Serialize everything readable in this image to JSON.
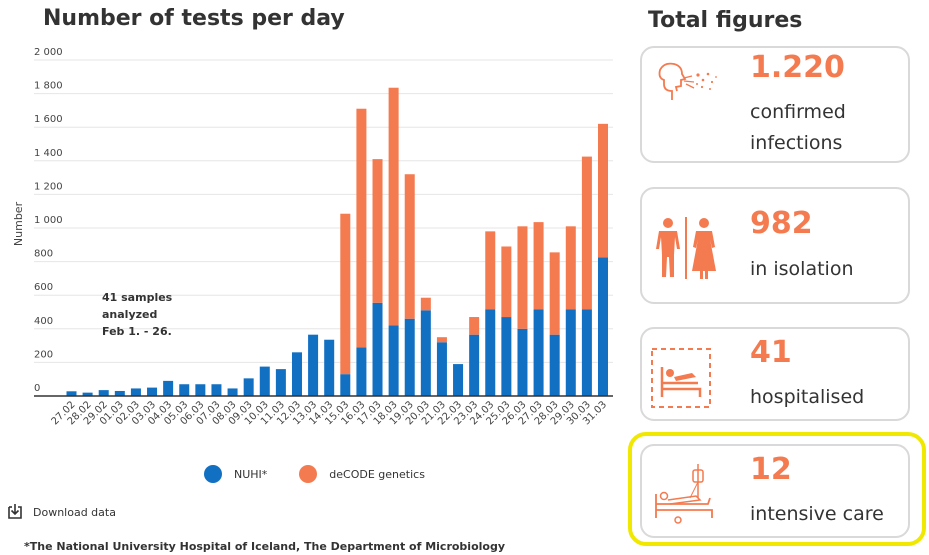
{
  "chart_data": {
    "type": "bar",
    "title": "Number of tests per day",
    "ylabel": "Number",
    "xlabel": "",
    "ylim": [
      0,
      2000
    ],
    "yticks": [
      "0",
      "200",
      "400",
      "600",
      "800",
      "1 000",
      "1 200",
      "1 400",
      "1 600",
      "1 800",
      "2 000"
    ],
    "categories": [
      "27.02",
      "28.02",
      "29.02",
      "01.03",
      "02.03",
      "03.03",
      "04.03",
      "05.03",
      "06.03",
      "07.03",
      "08.03",
      "09.03",
      "10.03",
      "11.03",
      "12.03",
      "13.03",
      "14.03",
      "15.03",
      "16.03",
      "17.03",
      "18.03",
      "19.03",
      "20.03",
      "21.03",
      "22.03",
      "23.03",
      "24.03",
      "25.03",
      "26.03",
      "27.03",
      "28.03",
      "29.03",
      "30.03",
      "31.03"
    ],
    "series": [
      {
        "name": "NUHI*",
        "color": "#1170c2",
        "values": [
          28,
          20,
          35,
          30,
          45,
          50,
          90,
          70,
          70,
          70,
          45,
          105,
          175,
          160,
          260,
          365,
          335,
          130,
          290,
          555,
          420,
          460,
          510,
          320,
          190,
          365,
          515,
          470,
          400,
          515,
          365,
          515,
          515,
          825
        ]
      },
      {
        "name": "deCODE genetics",
        "color": "#f47a4f",
        "values": [
          0,
          0,
          0,
          0,
          0,
          0,
          0,
          0,
          0,
          0,
          0,
          0,
          0,
          0,
          0,
          0,
          0,
          955,
          1420,
          855,
          1415,
          860,
          75,
          30,
          0,
          105,
          465,
          420,
          610,
          520,
          490,
          495,
          910,
          795
        ]
      }
    ],
    "annotation": [
      "41 samples",
      "analyzed",
      "Feb 1. - 26."
    ]
  },
  "legend": {
    "items": [
      {
        "label": "NUHI*",
        "color": "#1170c2"
      },
      {
        "label": "deCODE genetics",
        "color": "#f47a4f"
      }
    ]
  },
  "download": {
    "label": "Download data"
  },
  "footnote": "*The National University Hospital of Iceland, The Department of Microbiology",
  "totals": {
    "title": "Total figures",
    "cards": [
      {
        "value": "1.220",
        "label_line1": "confirmed",
        "label_line2": "infections",
        "icon": "person-sneezing-icon"
      },
      {
        "value": "982",
        "label_line1": "in isolation",
        "icon": "isolation-people-icon"
      },
      {
        "value": "41",
        "label_line1": "hospitalised",
        "icon": "hospital-bed-icon"
      },
      {
        "value": "12",
        "label_line1": "intensive care",
        "icon": "icu-bed-icon"
      }
    ]
  },
  "colors": {
    "accent": "#f47a4f",
    "blue": "#1170c2",
    "highlight": "#f0e800"
  }
}
